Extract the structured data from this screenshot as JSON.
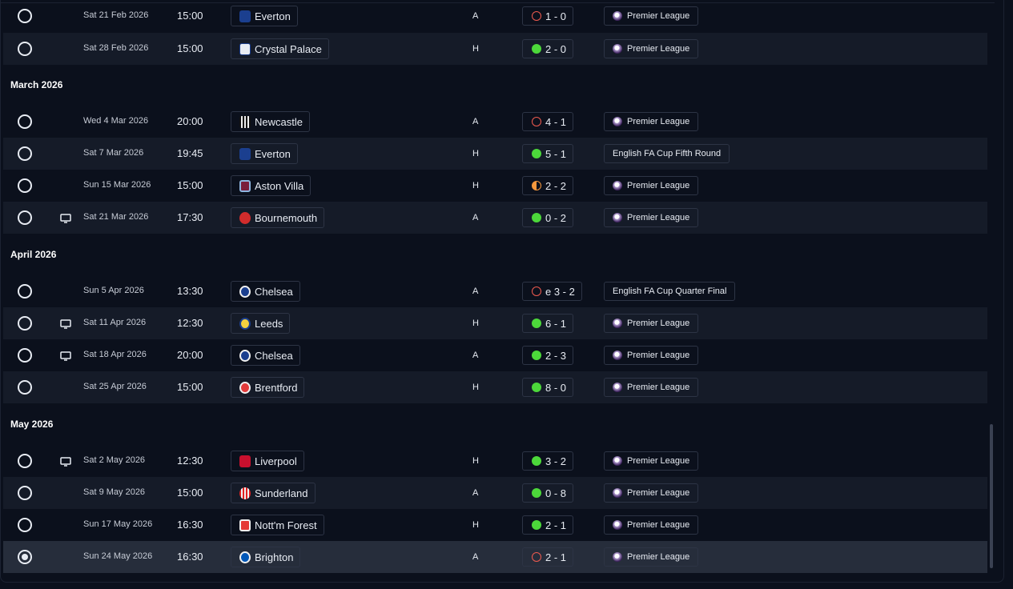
{
  "colors": {
    "win": "#4cd83a",
    "loss": "#ef5a4f",
    "draw": "#f6983d",
    "background": "#0b101c",
    "row_alt": "#151b28",
    "row_selected": "#262d3b"
  },
  "sections": [
    {
      "month": "",
      "fixtures": [
        {
          "date": "Sat 21 Feb 2026",
          "time": "15:00",
          "team": "Everton",
          "crest": "everton-crest-icon",
          "venue": "A",
          "result": "loss",
          "score": "1 - 0",
          "competition": "Premier League",
          "comp_icon": "premier-league-icon",
          "tv": false,
          "selected": false
        },
        {
          "date": "Sat 28 Feb 2026",
          "time": "15:00",
          "team": "Crystal Palace",
          "crest": "crystal-palace-crest-icon",
          "venue": "H",
          "result": "win",
          "score": "2 - 0",
          "competition": "Premier League",
          "comp_icon": "premier-league-icon",
          "tv": false,
          "selected": false
        }
      ]
    },
    {
      "month": "March 2026",
      "fixtures": [
        {
          "date": "Wed 4 Mar 2026",
          "time": "20:00",
          "team": "Newcastle",
          "crest": "newcastle-crest-icon",
          "venue": "A",
          "result": "loss",
          "score": "4 - 1",
          "competition": "Premier League",
          "comp_icon": "premier-league-icon",
          "tv": false,
          "selected": false
        },
        {
          "date": "Sat 7 Mar 2026",
          "time": "19:45",
          "team": "Everton",
          "crest": "everton-crest-icon",
          "venue": "H",
          "result": "win",
          "score": "5 - 1",
          "competition": "English FA Cup Fifth Round",
          "comp_icon": "",
          "tv": false,
          "selected": false
        },
        {
          "date": "Sun 15 Mar 2026",
          "time": "15:00",
          "team": "Aston Villa",
          "crest": "aston-villa-crest-icon",
          "venue": "H",
          "result": "draw",
          "score": "2 - 2",
          "competition": "Premier League",
          "comp_icon": "premier-league-icon",
          "tv": false,
          "selected": false
        },
        {
          "date": "Sat 21 Mar 2026",
          "time": "17:30",
          "team": "Bournemouth",
          "crest": "bournemouth-crest-icon",
          "venue": "A",
          "result": "win",
          "score": "0 - 2",
          "competition": "Premier League",
          "comp_icon": "premier-league-icon",
          "tv": true,
          "selected": false
        }
      ]
    },
    {
      "month": "April 2026",
      "fixtures": [
        {
          "date": "Sun 5 Apr 2026",
          "time": "13:30",
          "team": "Chelsea",
          "crest": "chelsea-crest-icon",
          "venue": "A",
          "result": "loss",
          "score": "e 3 - 2",
          "competition": "English FA Cup Quarter Final",
          "comp_icon": "",
          "tv": false,
          "selected": false
        },
        {
          "date": "Sat 11 Apr 2026",
          "time": "12:30",
          "team": "Leeds",
          "crest": "leeds-crest-icon",
          "venue": "H",
          "result": "win",
          "score": "6 - 1",
          "competition": "Premier League",
          "comp_icon": "premier-league-icon",
          "tv": true,
          "selected": false
        },
        {
          "date": "Sat 18 Apr 2026",
          "time": "20:00",
          "team": "Chelsea",
          "crest": "chelsea-crest-icon",
          "venue": "A",
          "result": "win",
          "score": "2 - 3",
          "competition": "Premier League",
          "comp_icon": "premier-league-icon",
          "tv": true,
          "selected": false
        },
        {
          "date": "Sat 25 Apr 2026",
          "time": "15:00",
          "team": "Brentford",
          "crest": "brentford-crest-icon",
          "venue": "H",
          "result": "win",
          "score": "8 - 0",
          "competition": "Premier League",
          "comp_icon": "premier-league-icon",
          "tv": false,
          "selected": false
        }
      ]
    },
    {
      "month": "May 2026",
      "fixtures": [
        {
          "date": "Sat 2 May 2026",
          "time": "12:30",
          "team": "Liverpool",
          "crest": "liverpool-crest-icon",
          "venue": "H",
          "result": "win",
          "score": "3 - 2",
          "competition": "Premier League",
          "comp_icon": "premier-league-icon",
          "tv": true,
          "selected": false
        },
        {
          "date": "Sat 9 May 2026",
          "time": "15:00",
          "team": "Sunderland",
          "crest": "sunderland-crest-icon",
          "venue": "A",
          "result": "win",
          "score": "0 - 8",
          "competition": "Premier League",
          "comp_icon": "premier-league-icon",
          "tv": false,
          "selected": false
        },
        {
          "date": "Sun 17 May 2026",
          "time": "16:30",
          "team": "Nott'm Forest",
          "crest": "nottm-forest-crest-icon",
          "venue": "H",
          "result": "win",
          "score": "2 - 1",
          "competition": "Premier League",
          "comp_icon": "premier-league-icon",
          "tv": false,
          "selected": false
        },
        {
          "date": "Sun 24 May 2026",
          "time": "16:30",
          "team": "Brighton",
          "crest": "brighton-crest-icon",
          "venue": "A",
          "result": "loss",
          "score": "2 - 1",
          "competition": "Premier League",
          "comp_icon": "premier-league-icon",
          "tv": false,
          "selected": true
        }
      ]
    }
  ]
}
